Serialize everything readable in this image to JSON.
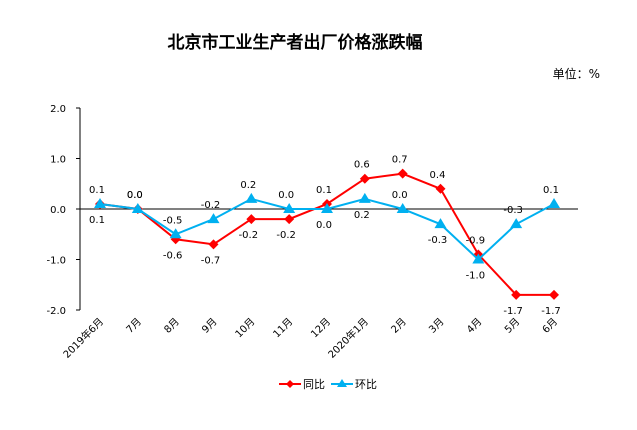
{
  "chart_data": {
    "type": "line",
    "title": "北京市工业生产者出厂价格涨跌幅",
    "unit_label": "单位：%",
    "categories": [
      "2019年6月",
      "7月",
      "8月",
      "9月",
      "10月",
      "11月",
      "12月",
      "2020年1月",
      "2月",
      "3月",
      "4月",
      "5月",
      "6月"
    ],
    "y_ticks": [
      "2.0",
      "1.0",
      "0.0",
      "-1.0",
      "-2.0"
    ],
    "ylim": [
      -2.0,
      2.0
    ],
    "legend_position": "bottom",
    "series": [
      {
        "name": "同比",
        "color": "#FF0000",
        "marker": "diamond",
        "values": [
          0.1,
          0.0,
          -0.6,
          -0.7,
          -0.2,
          -0.2,
          0.1,
          0.6,
          0.7,
          0.4,
          -0.9,
          -1.7,
          -1.7
        ],
        "labels": [
          "0.1",
          "0.0",
          "-0.6",
          "-0.7",
          "-0.2",
          "-0.2",
          "0.1",
          "0.6",
          "0.7",
          "0.4",
          "-0.9",
          "-1.7",
          "-1.7"
        ]
      },
      {
        "name": "环比",
        "color": "#00B0F0",
        "marker": "triangle",
        "values": [
          0.1,
          0.0,
          -0.5,
          -0.2,
          0.2,
          0.0,
          0.0,
          0.2,
          0.0,
          -0.3,
          -1.0,
          -0.3,
          0.1
        ],
        "labels": [
          "0.1",
          "0.0",
          "-0.5",
          "-0.2",
          "0.2",
          "0.0",
          "0.0",
          "0.2",
          "0.0",
          "-0.3",
          "-1.0",
          "-0.3",
          "0.1"
        ]
      }
    ]
  }
}
